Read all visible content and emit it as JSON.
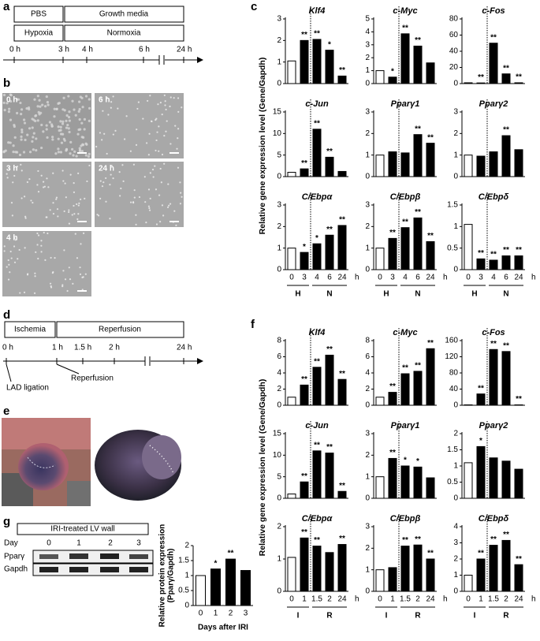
{
  "panel_labels": [
    "a",
    "b",
    "c",
    "d",
    "e",
    "f",
    "g"
  ],
  "a": {
    "row1": [
      "PBS",
      "Growth media"
    ],
    "row2": [
      "Hypoxia",
      "Normoxia"
    ],
    "ticks": [
      "0 h",
      "3 h",
      "4 h",
      "6 h",
      "24 h"
    ]
  },
  "b": {
    "images": [
      "0 h",
      "6 h",
      "3 h",
      "24 h",
      "4 h"
    ]
  },
  "d": {
    "boxes": [
      "Ischemia",
      "Reperfusion"
    ],
    "ticks": [
      "0 h",
      "1 h",
      "1.5 h",
      "2 h",
      "24 h"
    ],
    "notes": [
      "LAD ligation",
      "Reperfusion"
    ]
  },
  "g_blot": {
    "title": "IRI-treated LV wall",
    "day": "Day",
    "lanes": [
      "0",
      "1",
      "2",
      "3"
    ],
    "rows": [
      "Pparγ",
      "Gapdh"
    ]
  },
  "chart_data": [
    {
      "type": "bar-grid",
      "ylabel": "Relative gene expression level (Gene/Gapdh)",
      "categories": [
        "0",
        "3",
        "4",
        "6",
        "24"
      ],
      "unit": "h",
      "groups": [
        "H",
        "H",
        "N",
        "N",
        "N"
      ],
      "color": "#000000",
      "control_color": "#ffffff",
      "charts": [
        {
          "title": "Klf4",
          "ylim": [
            0,
            3
          ],
          "yticks": [
            0,
            1,
            2,
            3
          ],
          "values": [
            1.05,
            2.0,
            2.05,
            1.55,
            0.35
          ],
          "significance": [
            null,
            "**",
            "**",
            "*",
            "**"
          ]
        },
        {
          "title": "c-Myc",
          "ylim": [
            0,
            5
          ],
          "yticks": [
            0,
            1,
            2,
            3,
            4,
            5
          ],
          "values": [
            1.0,
            0.5,
            3.85,
            2.9,
            1.6
          ],
          "significance": [
            null,
            "*",
            "**",
            "**",
            null
          ]
        },
        {
          "title": "c-Fos",
          "ylim": [
            0,
            80
          ],
          "yticks": [
            0,
            20,
            40,
            60,
            80
          ],
          "values": [
            1,
            0.8,
            50,
            12,
            1
          ],
          "significance": [
            null,
            "**",
            "**",
            "**",
            "**"
          ]
        },
        {
          "title": "c-Jun",
          "ylim": [
            0,
            15
          ],
          "yticks": [
            0,
            5,
            10,
            15
          ],
          "values": [
            1,
            1.8,
            11,
            4.5,
            1.2
          ],
          "significance": [
            null,
            "**",
            "**",
            "**",
            null
          ]
        },
        {
          "title": "Pparγ1",
          "ylim": [
            0,
            3
          ],
          "yticks": [
            0,
            1,
            2,
            3
          ],
          "values": [
            1.0,
            1.15,
            1.1,
            1.95,
            1.55
          ],
          "significance": [
            null,
            null,
            null,
            "**",
            "**"
          ]
        },
        {
          "title": "Pparγ2",
          "ylim": [
            0,
            3
          ],
          "yticks": [
            0,
            1,
            2,
            3
          ],
          "values": [
            1.0,
            0.95,
            1.15,
            1.9,
            1.25
          ],
          "significance": [
            null,
            null,
            null,
            "**",
            null
          ]
        },
        {
          "title": "C/Ebpα",
          "ylim": [
            0,
            3
          ],
          "yticks": [
            0,
            1,
            2,
            3
          ],
          "values": [
            1.0,
            0.8,
            1.2,
            1.6,
            2.05
          ],
          "significance": [
            null,
            "*",
            "*",
            "**",
            "**"
          ]
        },
        {
          "title": "C/Ebpβ",
          "ylim": [
            0,
            3
          ],
          "yticks": [
            0,
            1,
            2,
            3
          ],
          "values": [
            1.0,
            1.45,
            1.95,
            2.4,
            1.3
          ],
          "significance": [
            null,
            "**",
            "**",
            "**",
            "**"
          ]
        },
        {
          "title": "C/Ebpδ",
          "ylim": [
            0,
            1.5
          ],
          "yticks": [
            0,
            0.5,
            1,
            1.5
          ],
          "values": [
            1.05,
            0.25,
            0.22,
            0.32,
            0.32
          ],
          "significance": [
            null,
            "**",
            "**",
            "**",
            "**"
          ]
        }
      ]
    },
    {
      "type": "bar-grid",
      "ylabel": "Relative gene expression level (Gene/Gapdh)",
      "categories": [
        "0",
        "1",
        "1.5",
        "2",
        "24"
      ],
      "unit": "h",
      "groups": [
        "I",
        "I",
        "R",
        "R",
        "R"
      ],
      "color": "#000000",
      "control_color": "#ffffff",
      "charts": [
        {
          "title": "Klf4",
          "ylim": [
            0,
            8
          ],
          "yticks": [
            0,
            2,
            4,
            6,
            8
          ],
          "values": [
            1,
            2.5,
            4.7,
            6.2,
            3.2
          ],
          "significance": [
            null,
            "**",
            "**",
            "**",
            "**"
          ]
        },
        {
          "title": "c-Myc",
          "ylim": [
            0,
            8
          ],
          "yticks": [
            0,
            2,
            4,
            6,
            8
          ],
          "values": [
            1,
            1.6,
            3.9,
            4.2,
            7.0
          ],
          "significance": [
            null,
            "**",
            "**",
            "**",
            "**"
          ]
        },
        {
          "title": "c-Fos",
          "ylim": [
            0,
            160
          ],
          "yticks": [
            0,
            40,
            80,
            120,
            160
          ],
          "values": [
            1,
            28,
            138,
            133,
            1
          ],
          "significance": [
            null,
            "**",
            "**",
            "**",
            "**"
          ]
        },
        {
          "title": "c-Jun",
          "ylim": [
            0,
            15
          ],
          "yticks": [
            0,
            5,
            10,
            15
          ],
          "values": [
            1,
            3.8,
            11,
            10.5,
            1.6
          ],
          "significance": [
            null,
            "**",
            "**",
            "**",
            "**"
          ]
        },
        {
          "title": "Pparγ1",
          "ylim": [
            0,
            3
          ],
          "yticks": [
            0,
            1,
            2,
            3
          ],
          "values": [
            1.0,
            1.85,
            1.5,
            1.45,
            0.95
          ],
          "significance": [
            null,
            "**",
            "*",
            "*",
            null
          ]
        },
        {
          "title": "Pparγ2",
          "ylim": [
            0,
            2
          ],
          "yticks": [
            0,
            0.5,
            1,
            1.5,
            2
          ],
          "values": [
            1.1,
            1.6,
            1.25,
            1.15,
            0.9
          ],
          "significance": [
            null,
            "*",
            null,
            null,
            null
          ]
        },
        {
          "title": "C/Ebpα",
          "ylim": [
            0,
            2
          ],
          "yticks": [
            0,
            1,
            2
          ],
          "values": [
            1.05,
            1.65,
            1.4,
            1.2,
            1.45
          ],
          "significance": [
            null,
            "**",
            "**",
            null,
            "**"
          ]
        },
        {
          "title": "C/Ebpβ",
          "ylim": [
            0,
            3
          ],
          "yticks": [
            0,
            1,
            2,
            3
          ],
          "values": [
            1.0,
            1.1,
            2.1,
            2.15,
            1.5
          ],
          "significance": [
            null,
            null,
            "**",
            "**",
            "**"
          ]
        },
        {
          "title": "C/Ebpδ",
          "ylim": [
            0,
            4
          ],
          "yticks": [
            0,
            1,
            2,
            3,
            4
          ],
          "values": [
            1.0,
            2.0,
            2.85,
            3.15,
            1.65
          ],
          "significance": [
            null,
            "**",
            "**",
            "**",
            "**"
          ]
        }
      ]
    },
    {
      "type": "bar",
      "ylabel": [
        "Relative protein expression",
        "(Pparγ/Gapdh)"
      ],
      "xlabel": "Days after IRI",
      "categories": [
        "0",
        "1",
        "2",
        "3"
      ],
      "values": [
        1.0,
        1.22,
        1.55,
        1.17
      ],
      "significance": [
        null,
        "*",
        "**",
        null
      ],
      "ylim": [
        0,
        2
      ],
      "yticks": [
        0,
        0.5,
        1,
        1.5,
        2
      ],
      "color": "#000000",
      "control_color": "#ffffff"
    }
  ]
}
